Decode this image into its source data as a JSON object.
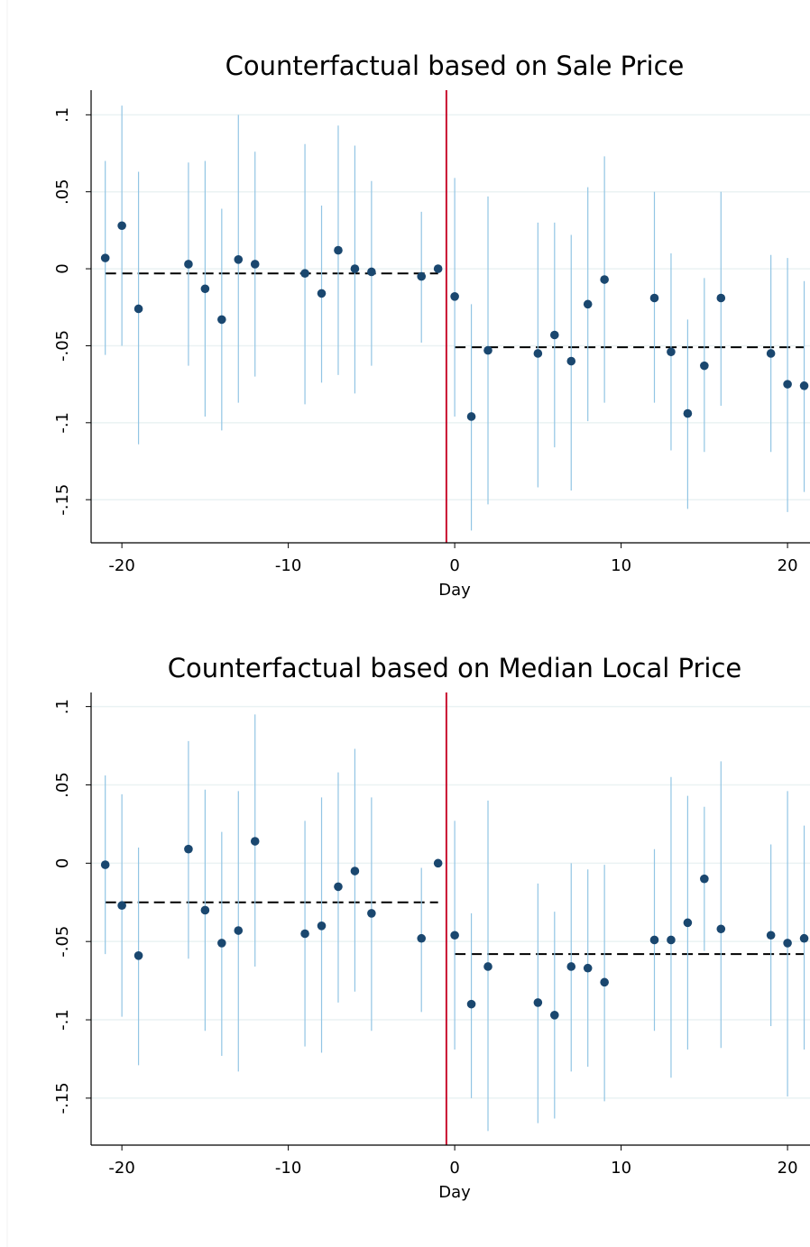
{
  "chart_data": [
    {
      "type": "scatter",
      "title": "Counterfactual based on Sale Price",
      "xlabel": "Day",
      "x": [
        -21,
        -20,
        -19,
        -16,
        -15,
        -14,
        -13,
        -12,
        -9,
        -8,
        -7,
        -6,
        -5,
        -2,
        -1,
        0,
        1,
        2,
        5,
        6,
        7,
        8,
        9,
        12,
        13,
        14,
        15,
        16,
        19,
        20,
        21
      ],
      "values": [
        0.007,
        0.028,
        -0.026,
        0.003,
        -0.013,
        -0.033,
        0.006,
        0.003,
        -0.003,
        -0.016,
        0.012,
        0.0,
        -0.002,
        -0.005,
        0,
        -0.018,
        -0.096,
        -0.053,
        -0.055,
        -0.043,
        -0.06,
        -0.023,
        -0.007,
        -0.019,
        -0.054,
        -0.094,
        -0.063,
        -0.019,
        -0.055,
        -0.075,
        -0.076
      ],
      "ci_low": [
        -0.056,
        -0.05,
        -0.114,
        -0.063,
        -0.096,
        -0.105,
        -0.087,
        -0.07,
        -0.088,
        -0.074,
        -0.069,
        -0.081,
        -0.063,
        -0.048,
        null,
        -0.096,
        -0.17,
        -0.153,
        -0.142,
        -0.116,
        -0.144,
        -0.099,
        -0.087,
        -0.087,
        -0.118,
        -0.156,
        -0.119,
        -0.089,
        -0.119,
        -0.158,
        -0.145
      ],
      "ci_high": [
        0.07,
        0.106,
        0.063,
        0.069,
        0.07,
        0.039,
        0.1,
        0.076,
        0.081,
        0.041,
        0.093,
        0.08,
        0.057,
        0.037,
        null,
        0.059,
        -0.023,
        0.047,
        0.03,
        0.03,
        0.022,
        0.053,
        0.073,
        0.05,
        0.01,
        -0.033,
        -0.006,
        0.05,
        0.009,
        0.007,
        -0.008
      ],
      "point_color": "#1a476f",
      "ci_color": "#92c5e4",
      "mean_lines": [
        {
          "from": -21,
          "to": -1,
          "value": -0.003
        },
        {
          "from": 0,
          "to": 21,
          "value": -0.051
        }
      ],
      "vline": -0.5,
      "vline_color": "#c8102e",
      "xlim": [
        -21.85,
        21.35
      ],
      "ylim": [
        -0.178,
        0.116
      ],
      "xticks": [
        -20,
        -10,
        0,
        10,
        20
      ],
      "yticks": [
        {
          "value": 0.1,
          "label": ".1"
        },
        {
          "value": 0.05,
          "label": ".05"
        },
        0,
        {
          "value": -0.05,
          "label": "-.05"
        },
        {
          "value": -0.1,
          "label": "-.1"
        },
        {
          "value": -0.15,
          "label": "-.15"
        }
      ],
      "grid": true
    },
    {
      "type": "scatter",
      "title": "Counterfactual based on  Median Local Price",
      "xlabel": "Day",
      "x": [
        -21,
        -20,
        -19,
        -16,
        -15,
        -14,
        -13,
        -12,
        -9,
        -8,
        -7,
        -6,
        -5,
        -2,
        -1,
        0,
        1,
        2,
        5,
        6,
        7,
        8,
        9,
        12,
        13,
        14,
        15,
        16,
        19,
        20,
        21
      ],
      "values": [
        -0.001,
        -0.027,
        -0.059,
        0.009,
        -0.03,
        -0.051,
        -0.043,
        0.014,
        -0.045,
        -0.04,
        -0.015,
        -0.005,
        -0.032,
        -0.048,
        0,
        -0.046,
        -0.09,
        -0.066,
        -0.089,
        -0.097,
        -0.066,
        -0.067,
        -0.076,
        -0.049,
        -0.049,
        -0.038,
        -0.01,
        -0.042,
        -0.046,
        -0.051,
        -0.048
      ],
      "ci_low": [
        -0.058,
        -0.098,
        -0.129,
        -0.061,
        -0.107,
        -0.123,
        -0.133,
        -0.066,
        -0.117,
        -0.121,
        -0.089,
        -0.082,
        -0.107,
        -0.095,
        null,
        -0.119,
        -0.15,
        -0.171,
        -0.166,
        -0.163,
        -0.133,
        -0.13,
        -0.152,
        -0.107,
        -0.137,
        -0.119,
        -0.056,
        -0.118,
        -0.104,
        -0.149,
        -0.119
      ],
      "ci_high": [
        0.056,
        0.044,
        0.01,
        0.078,
        0.047,
        0.02,
        0.046,
        0.095,
        0.027,
        0.042,
        0.058,
        0.073,
        0.042,
        -0.003,
        null,
        0.027,
        -0.032,
        0.04,
        -0.013,
        -0.031,
        0.0,
        -0.004,
        -0.001,
        0.009,
        0.055,
        0.043,
        0.036,
        0.065,
        0.012,
        0.046,
        0.024
      ],
      "point_color": "#1a476f",
      "ci_color": "#92c5e4",
      "mean_lines": [
        {
          "from": -21,
          "to": -1,
          "value": -0.025
        },
        {
          "from": 0,
          "to": 21,
          "value": -0.058
        }
      ],
      "vline": -0.5,
      "vline_color": "#c8102e",
      "xlim": [
        -21.85,
        21.35
      ],
      "ylim": [
        -0.18,
        0.109
      ],
      "xticks": [
        -20,
        -10,
        0,
        10,
        20
      ],
      "yticks": [
        {
          "value": 0.1,
          "label": ".1"
        },
        {
          "value": 0.05,
          "label": ".05"
        },
        0,
        {
          "value": -0.05,
          "label": "-.05"
        },
        {
          "value": -0.1,
          "label": "-.1"
        },
        {
          "value": -0.15,
          "label": "-.15"
        }
      ],
      "grid": true
    }
  ]
}
